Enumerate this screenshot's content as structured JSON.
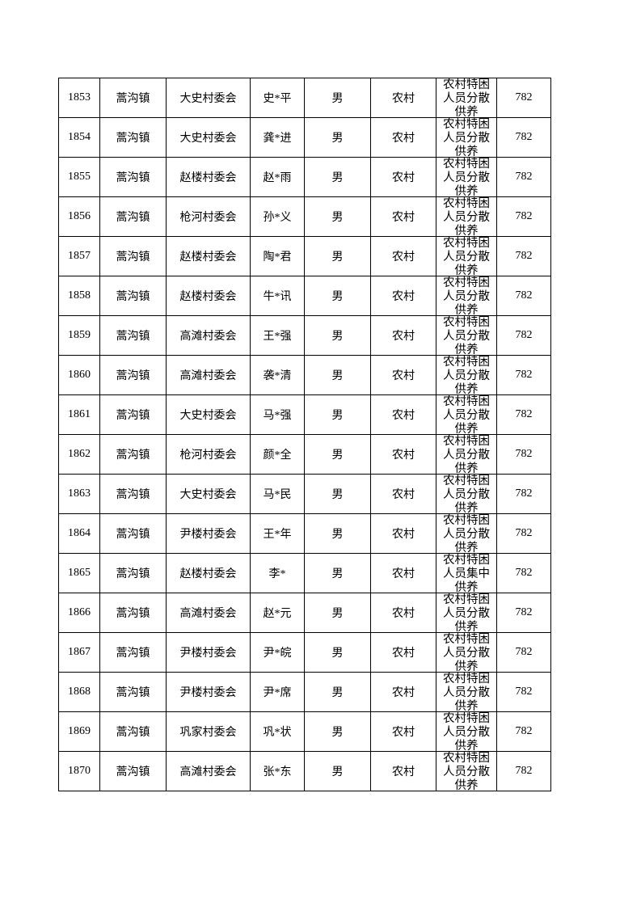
{
  "rows": [
    {
      "no": "1853",
      "town": "蒿沟镇",
      "village": "大史村委会",
      "name": "史*平",
      "gender": "男",
      "type": "农村",
      "category": "农村特困人员分散供养",
      "amount": "782"
    },
    {
      "no": "1854",
      "town": "蒿沟镇",
      "village": "大史村委会",
      "name": "龚*进",
      "gender": "男",
      "type": "农村",
      "category": "农村特困人员分散供养",
      "amount": "782"
    },
    {
      "no": "1855",
      "town": "蒿沟镇",
      "village": "赵楼村委会",
      "name": "赵*雨",
      "gender": "男",
      "type": "农村",
      "category": "农村特困人员分散供养",
      "amount": "782"
    },
    {
      "no": "1856",
      "town": "蒿沟镇",
      "village": "枪河村委会",
      "name": "孙*义",
      "gender": "男",
      "type": "农村",
      "category": "农村特困人员分散供养",
      "amount": "782"
    },
    {
      "no": "1857",
      "town": "蒿沟镇",
      "village": "赵楼村委会",
      "name": "陶*君",
      "gender": "男",
      "type": "农村",
      "category": "农村特困人员分散供养",
      "amount": "782"
    },
    {
      "no": "1858",
      "town": "蒿沟镇",
      "village": "赵楼村委会",
      "name": "牛*讯",
      "gender": "男",
      "type": "农村",
      "category": "农村特困人员分散供养",
      "amount": "782"
    },
    {
      "no": "1859",
      "town": "蒿沟镇",
      "village": "高滩村委会",
      "name": "王*强",
      "gender": "男",
      "type": "农村",
      "category": "农村特困人员分散供养",
      "amount": "782"
    },
    {
      "no": "1860",
      "town": "蒿沟镇",
      "village": "高滩村委会",
      "name": "袭*清",
      "gender": "男",
      "type": "农村",
      "category": "农村特困人员分散供养",
      "amount": "782"
    },
    {
      "no": "1861",
      "town": "蒿沟镇",
      "village": "大史村委会",
      "name": "马*强",
      "gender": "男",
      "type": "农村",
      "category": "农村特困人员分散供养",
      "amount": "782"
    },
    {
      "no": "1862",
      "town": "蒿沟镇",
      "village": "枪河村委会",
      "name": "颜*全",
      "gender": "男",
      "type": "农村",
      "category": "农村特困人员分散供养",
      "amount": "782"
    },
    {
      "no": "1863",
      "town": "蒿沟镇",
      "village": "大史村委会",
      "name": "马*民",
      "gender": "男",
      "type": "农村",
      "category": "农村特困人员分散供养",
      "amount": "782"
    },
    {
      "no": "1864",
      "town": "蒿沟镇",
      "village": "尹楼村委会",
      "name": "王*年",
      "gender": "男",
      "type": "农村",
      "category": "农村特困人员分散供养",
      "amount": "782"
    },
    {
      "no": "1865",
      "town": "蒿沟镇",
      "village": "赵楼村委会",
      "name": "李*",
      "gender": "男",
      "type": "农村",
      "category": "农村特困人员集中供养",
      "amount": "782"
    },
    {
      "no": "1866",
      "town": "蒿沟镇",
      "village": "高滩村委会",
      "name": "赵*元",
      "gender": "男",
      "type": "农村",
      "category": "农村特困人员分散供养",
      "amount": "782"
    },
    {
      "no": "1867",
      "town": "蒿沟镇",
      "village": "尹楼村委会",
      "name": "尹*皖",
      "gender": "男",
      "type": "农村",
      "category": "农村特困人员分散供养",
      "amount": "782"
    },
    {
      "no": "1868",
      "town": "蒿沟镇",
      "village": "尹楼村委会",
      "name": "尹*席",
      "gender": "男",
      "type": "农村",
      "category": "农村特困人员分散供养",
      "amount": "782"
    },
    {
      "no": "1869",
      "town": "蒿沟镇",
      "village": "巩家村委会",
      "name": "巩*状",
      "gender": "男",
      "type": "农村",
      "category": "农村特困人员分散供养",
      "amount": "782"
    },
    {
      "no": "1870",
      "town": "蒿沟镇",
      "village": "高滩村委会",
      "name": "张*东",
      "gender": "男",
      "type": "农村",
      "category": "农村特困人员分散供养",
      "amount": "782"
    }
  ]
}
